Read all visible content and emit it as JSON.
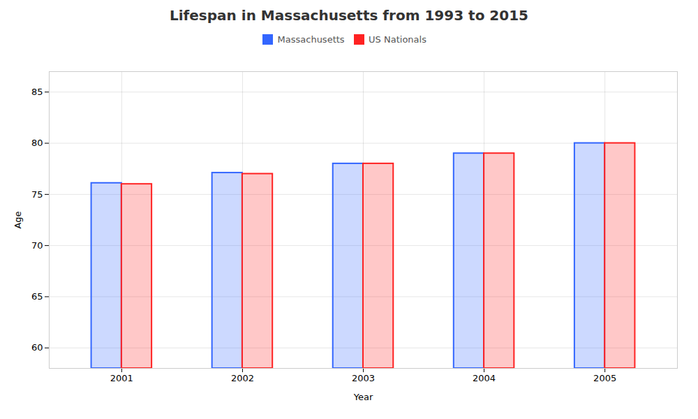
{
  "chart_data": {
    "type": "bar",
    "title": "Lifespan in Massachusetts from 1993 to 2015",
    "xlabel": "Year",
    "ylabel": "Age",
    "categories": [
      "2001",
      "2002",
      "2003",
      "2004",
      "2005"
    ],
    "series": [
      {
        "name": "Massachusetts",
        "color": "#3366ff",
        "values": [
          76.1,
          77.1,
          78.0,
          79.0,
          80.0
        ]
      },
      {
        "name": "US Nationals",
        "color": "#ff2222",
        "values": [
          76.0,
          77.0,
          78.0,
          79.0,
          80.0
        ]
      }
    ],
    "ylim": [
      58,
      87
    ],
    "yticks": [
      60,
      65,
      70,
      75,
      80,
      85
    ],
    "grid": true,
    "legend": "upper center"
  }
}
